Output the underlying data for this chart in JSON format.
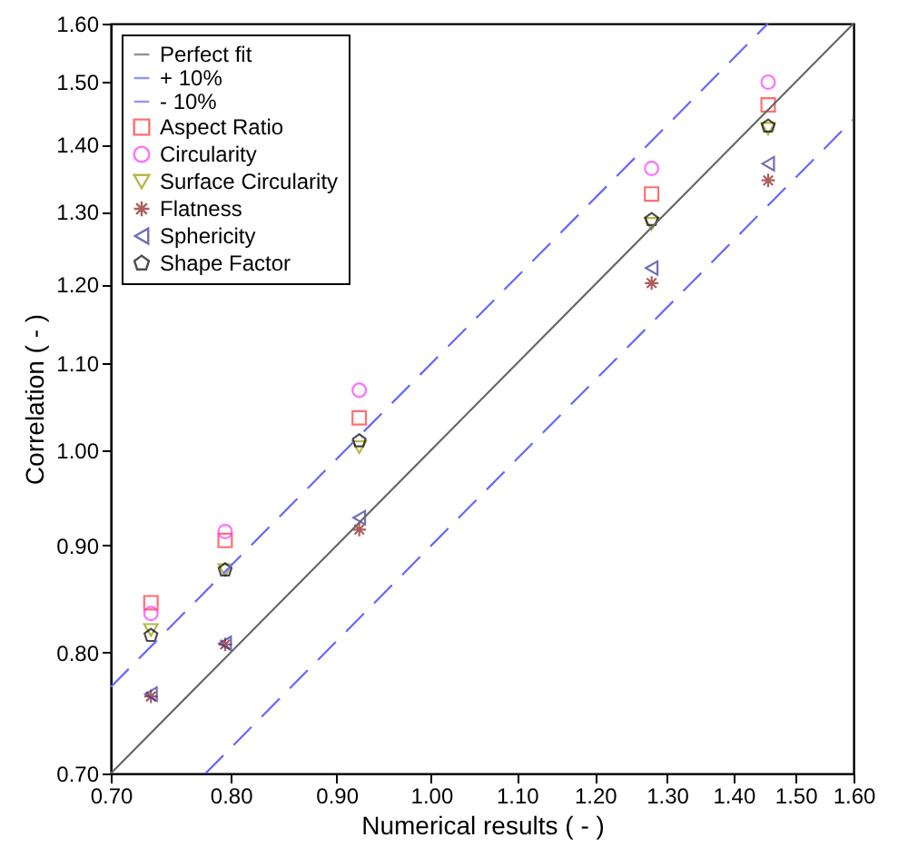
{
  "chart_data": {
    "type": "scatter",
    "xlabel": "Numerical results ( - )",
    "ylabel": "Correlation ( - )",
    "log": "xy",
    "legend": "top left",
    "xlim": [
      0.7,
      1.6
    ],
    "ylim": [
      0.7,
      1.6
    ],
    "xticks": [
      {
        "value": 0.7,
        "label": "0.70"
      },
      {
        "value": 0.8,
        "label": "0.80"
      },
      {
        "value": 0.9,
        "label": "0.90"
      },
      {
        "value": 1.0,
        "label": "1.00"
      },
      {
        "value": 1.1,
        "label": "1.10"
      },
      {
        "value": 1.2,
        "label": "1.20"
      },
      {
        "value": 1.3,
        "label": "1.30"
      },
      {
        "value": 1.4,
        "label": "1.40"
      },
      {
        "value": 1.5,
        "label": "1.50"
      },
      {
        "value": 1.6,
        "label": "1.60"
      }
    ],
    "yticks": [
      {
        "value": 0.7,
        "label": "0.70"
      },
      {
        "value": 0.8,
        "label": "0.80"
      },
      {
        "value": 0.9,
        "label": "0.90"
      },
      {
        "value": 1.0,
        "label": "1.00"
      },
      {
        "value": 1.1,
        "label": "1.10"
      },
      {
        "value": 1.2,
        "label": "1.20"
      },
      {
        "value": 1.3,
        "label": "1.30"
      },
      {
        "value": 1.4,
        "label": "1.40"
      },
      {
        "value": 1.5,
        "label": "1.50"
      },
      {
        "value": 1.6,
        "label": "1.60"
      }
    ],
    "series": [
      {
        "name": "Perfect fit",
        "type": "line",
        "line_style": "solid",
        "color": "#666666",
        "x": [
          0.7,
          1.6
        ],
        "values": [
          0.7,
          1.6
        ]
      },
      {
        "name": "+ 10%",
        "type": "line",
        "line_style": "dashed",
        "color": "#6666ff",
        "x": [
          0.7,
          1.4545
        ],
        "values": [
          0.77,
          1.6
        ]
      },
      {
        "name": "- 10%",
        "type": "line",
        "line_style": "dashed",
        "color": "#6666ff",
        "x": [
          0.7778,
          1.6
        ],
        "values": [
          0.7,
          1.44
        ]
      },
      {
        "name": "Aspect Ratio",
        "marker": "square",
        "color": "#ff3333",
        "x": [
          0.732,
          0.795,
          0.923,
          1.278,
          1.455
        ],
        "values": [
          0.845,
          0.905,
          1.036,
          1.326,
          1.463
        ]
      },
      {
        "name": "Circularity",
        "marker": "circle",
        "color": "#ff33ff",
        "x": [
          0.732,
          0.795,
          0.923,
          1.278,
          1.455
        ],
        "values": [
          0.835,
          0.914,
          1.068,
          1.364,
          1.5
        ]
      },
      {
        "name": "Surface Circularity",
        "marker": "triangle-down",
        "color": "#999900",
        "x": [
          0.732,
          0.795,
          0.923,
          1.278,
          1.455
        ],
        "values": [
          0.82,
          0.876,
          1.003,
          1.283,
          1.425
        ]
      },
      {
        "name": "Flatness",
        "marker": "cross",
        "color": "#8b1a1a",
        "x": [
          0.732,
          0.795,
          0.923,
          1.278,
          1.455
        ],
        "values": [
          0.762,
          0.807,
          0.916,
          1.202,
          1.346
        ]
      },
      {
        "name": "Sphericity",
        "marker": "triangle-left",
        "color": "#333399",
        "x": [
          0.732,
          0.795,
          0.923,
          1.278,
          1.455
        ],
        "values": [
          0.764,
          0.808,
          0.928,
          1.222,
          1.371
        ]
      },
      {
        "name": "Shape Factor",
        "color": "#000000",
        "x": [
          0.732,
          0.795,
          0.923,
          1.278,
          1.455
        ],
        "values": [
          0.815,
          0.876,
          1.01,
          1.289,
          1.429
        ]
      }
    ]
  }
}
